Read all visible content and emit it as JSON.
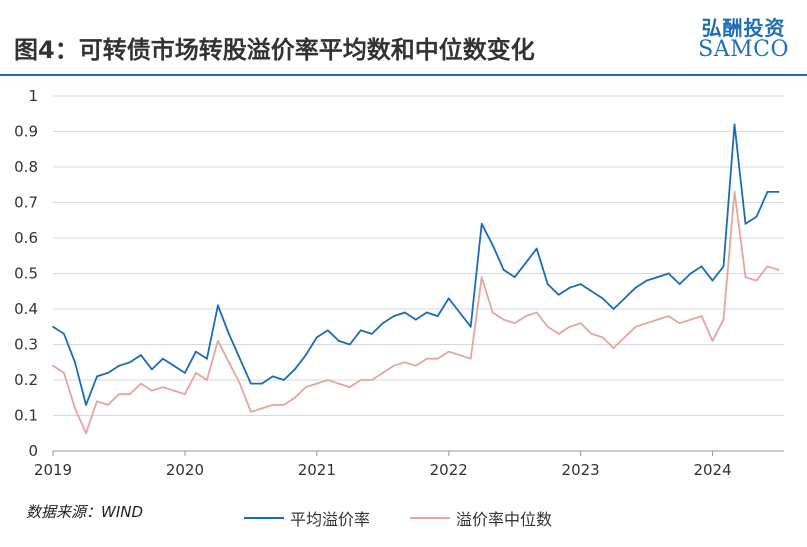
{
  "header": {
    "title": "图4：可转债市场转股溢价率平均数和中位数变化",
    "logo_cn": "弘酬投资",
    "logo_en": "SAMCO"
  },
  "footer": {
    "source": "数据来源：WIND"
  },
  "colors": {
    "mean": "#1a6db5",
    "median": "#e8a3a3",
    "brand": "#1f6fb8"
  },
  "chart_data": {
    "type": "line",
    "title": "",
    "xlabel": "",
    "ylabel": "",
    "ylim": [
      0,
      1
    ],
    "yticks": [
      "0",
      "0.1",
      "0.2",
      "0.3",
      "0.4",
      "0.5",
      "0.6",
      "0.7",
      "0.8",
      "0.9",
      "1"
    ],
    "xlim": [
      "2019-01",
      "2024-07"
    ],
    "xticks": [
      "2019",
      "2020",
      "2021",
      "2022",
      "2023",
      "2024"
    ],
    "grid": true,
    "legend": "bottom",
    "series": [
      {
        "name": "平均溢价率",
        "x": [
          "2019-01",
          "2019-02",
          "2019-03",
          "2019-04",
          "2019-05",
          "2019-06",
          "2019-07",
          "2019-08",
          "2019-09",
          "2019-10",
          "2019-11",
          "2019-12",
          "2020-01",
          "2020-02",
          "2020-03",
          "2020-04",
          "2020-05",
          "2020-06",
          "2020-07",
          "2020-08",
          "2020-09",
          "2020-10",
          "2020-11",
          "2020-12",
          "2021-01",
          "2021-02",
          "2021-03",
          "2021-04",
          "2021-05",
          "2021-06",
          "2021-07",
          "2021-08",
          "2021-09",
          "2021-10",
          "2021-11",
          "2021-12",
          "2022-01",
          "2022-02",
          "2022-03",
          "2022-04",
          "2022-05",
          "2022-06",
          "2022-07",
          "2022-08",
          "2022-09",
          "2022-10",
          "2022-11",
          "2022-12",
          "2023-01",
          "2023-02",
          "2023-03",
          "2023-04",
          "2023-05",
          "2023-06",
          "2023-07",
          "2023-08",
          "2023-09",
          "2023-10",
          "2023-11",
          "2023-12",
          "2024-01",
          "2024-02",
          "2024-03",
          "2024-04",
          "2024-05",
          "2024-06",
          "2024-07"
        ],
        "values": [
          0.35,
          0.33,
          0.25,
          0.13,
          0.21,
          0.22,
          0.24,
          0.25,
          0.27,
          0.23,
          0.26,
          0.24,
          0.22,
          0.28,
          0.26,
          0.41,
          0.33,
          0.26,
          0.19,
          0.19,
          0.21,
          0.2,
          0.23,
          0.27,
          0.32,
          0.34,
          0.31,
          0.3,
          0.34,
          0.33,
          0.36,
          0.38,
          0.39,
          0.37,
          0.39,
          0.38,
          0.43,
          0.39,
          0.35,
          0.64,
          0.58,
          0.51,
          0.49,
          0.53,
          0.57,
          0.47,
          0.44,
          0.46,
          0.47,
          0.45,
          0.43,
          0.4,
          0.43,
          0.46,
          0.48,
          0.49,
          0.5,
          0.47,
          0.5,
          0.52,
          0.48,
          0.52,
          0.92,
          0.64,
          0.66,
          0.73,
          0.73
        ]
      },
      {
        "name": "溢价率中位数",
        "x": [
          "2019-01",
          "2019-02",
          "2019-03",
          "2019-04",
          "2019-05",
          "2019-06",
          "2019-07",
          "2019-08",
          "2019-09",
          "2019-10",
          "2019-11",
          "2019-12",
          "2020-01",
          "2020-02",
          "2020-03",
          "2020-04",
          "2020-05",
          "2020-06",
          "2020-07",
          "2020-08",
          "2020-09",
          "2020-10",
          "2020-11",
          "2020-12",
          "2021-01",
          "2021-02",
          "2021-03",
          "2021-04",
          "2021-05",
          "2021-06",
          "2021-07",
          "2021-08",
          "2021-09",
          "2021-10",
          "2021-11",
          "2021-12",
          "2022-01",
          "2022-02",
          "2022-03",
          "2022-04",
          "2022-05",
          "2022-06",
          "2022-07",
          "2022-08",
          "2022-09",
          "2022-10",
          "2022-11",
          "2022-12",
          "2023-01",
          "2023-02",
          "2023-03",
          "2023-04",
          "2023-05",
          "2023-06",
          "2023-07",
          "2023-08",
          "2023-09",
          "2023-10",
          "2023-11",
          "2023-12",
          "2024-01",
          "2024-02",
          "2024-03",
          "2024-04",
          "2024-05",
          "2024-06",
          "2024-07"
        ],
        "values": [
          0.24,
          0.22,
          0.12,
          0.05,
          0.14,
          0.13,
          0.16,
          0.16,
          0.19,
          0.17,
          0.18,
          0.17,
          0.16,
          0.22,
          0.2,
          0.31,
          0.25,
          0.19,
          0.11,
          0.12,
          0.13,
          0.13,
          0.15,
          0.18,
          0.19,
          0.2,
          0.19,
          0.18,
          0.2,
          0.2,
          0.22,
          0.24,
          0.25,
          0.24,
          0.26,
          0.26,
          0.28,
          0.27,
          0.26,
          0.49,
          0.39,
          0.37,
          0.36,
          0.38,
          0.39,
          0.35,
          0.33,
          0.35,
          0.36,
          0.33,
          0.32,
          0.29,
          0.32,
          0.35,
          0.36,
          0.37,
          0.38,
          0.36,
          0.37,
          0.38,
          0.31,
          0.37,
          0.73,
          0.49,
          0.48,
          0.52,
          0.51
        ]
      }
    ]
  }
}
